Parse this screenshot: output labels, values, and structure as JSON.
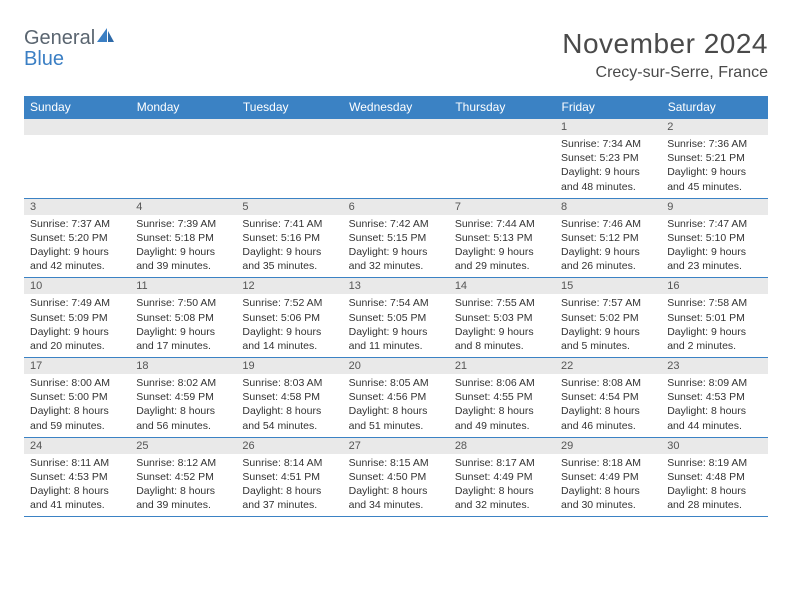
{
  "brand": {
    "word1": "General",
    "word2": "Blue"
  },
  "title": {
    "month": "November 2024",
    "location": "Crecy-sur-Serre, France"
  },
  "colors": {
    "header_bg": "#3b82c4",
    "header_text": "#ffffff",
    "daynum_bg": "#e9e9e9",
    "daynum_text": "#555555",
    "border": "#3b82c4",
    "logo_gray": "#5a6570",
    "logo_blue": "#3b7fc4",
    "page_bg": "#ffffff",
    "body_text": "#333333"
  },
  "day_headers": [
    "Sunday",
    "Monday",
    "Tuesday",
    "Wednesday",
    "Thursday",
    "Friday",
    "Saturday"
  ],
  "weeks": [
    [
      {
        "num": "",
        "sunrise": "",
        "sunset": "",
        "daylight1": "",
        "daylight2": ""
      },
      {
        "num": "",
        "sunrise": "",
        "sunset": "",
        "daylight1": "",
        "daylight2": ""
      },
      {
        "num": "",
        "sunrise": "",
        "sunset": "",
        "daylight1": "",
        "daylight2": ""
      },
      {
        "num": "",
        "sunrise": "",
        "sunset": "",
        "daylight1": "",
        "daylight2": ""
      },
      {
        "num": "",
        "sunrise": "",
        "sunset": "",
        "daylight1": "",
        "daylight2": ""
      },
      {
        "num": "1",
        "sunrise": "Sunrise: 7:34 AM",
        "sunset": "Sunset: 5:23 PM",
        "daylight1": "Daylight: 9 hours",
        "daylight2": "and 48 minutes."
      },
      {
        "num": "2",
        "sunrise": "Sunrise: 7:36 AM",
        "sunset": "Sunset: 5:21 PM",
        "daylight1": "Daylight: 9 hours",
        "daylight2": "and 45 minutes."
      }
    ],
    [
      {
        "num": "3",
        "sunrise": "Sunrise: 7:37 AM",
        "sunset": "Sunset: 5:20 PM",
        "daylight1": "Daylight: 9 hours",
        "daylight2": "and 42 minutes."
      },
      {
        "num": "4",
        "sunrise": "Sunrise: 7:39 AM",
        "sunset": "Sunset: 5:18 PM",
        "daylight1": "Daylight: 9 hours",
        "daylight2": "and 39 minutes."
      },
      {
        "num": "5",
        "sunrise": "Sunrise: 7:41 AM",
        "sunset": "Sunset: 5:16 PM",
        "daylight1": "Daylight: 9 hours",
        "daylight2": "and 35 minutes."
      },
      {
        "num": "6",
        "sunrise": "Sunrise: 7:42 AM",
        "sunset": "Sunset: 5:15 PM",
        "daylight1": "Daylight: 9 hours",
        "daylight2": "and 32 minutes."
      },
      {
        "num": "7",
        "sunrise": "Sunrise: 7:44 AM",
        "sunset": "Sunset: 5:13 PM",
        "daylight1": "Daylight: 9 hours",
        "daylight2": "and 29 minutes."
      },
      {
        "num": "8",
        "sunrise": "Sunrise: 7:46 AM",
        "sunset": "Sunset: 5:12 PM",
        "daylight1": "Daylight: 9 hours",
        "daylight2": "and 26 minutes."
      },
      {
        "num": "9",
        "sunrise": "Sunrise: 7:47 AM",
        "sunset": "Sunset: 5:10 PM",
        "daylight1": "Daylight: 9 hours",
        "daylight2": "and 23 minutes."
      }
    ],
    [
      {
        "num": "10",
        "sunrise": "Sunrise: 7:49 AM",
        "sunset": "Sunset: 5:09 PM",
        "daylight1": "Daylight: 9 hours",
        "daylight2": "and 20 minutes."
      },
      {
        "num": "11",
        "sunrise": "Sunrise: 7:50 AM",
        "sunset": "Sunset: 5:08 PM",
        "daylight1": "Daylight: 9 hours",
        "daylight2": "and 17 minutes."
      },
      {
        "num": "12",
        "sunrise": "Sunrise: 7:52 AM",
        "sunset": "Sunset: 5:06 PM",
        "daylight1": "Daylight: 9 hours",
        "daylight2": "and 14 minutes."
      },
      {
        "num": "13",
        "sunrise": "Sunrise: 7:54 AM",
        "sunset": "Sunset: 5:05 PM",
        "daylight1": "Daylight: 9 hours",
        "daylight2": "and 11 minutes."
      },
      {
        "num": "14",
        "sunrise": "Sunrise: 7:55 AM",
        "sunset": "Sunset: 5:03 PM",
        "daylight1": "Daylight: 9 hours",
        "daylight2": "and 8 minutes."
      },
      {
        "num": "15",
        "sunrise": "Sunrise: 7:57 AM",
        "sunset": "Sunset: 5:02 PM",
        "daylight1": "Daylight: 9 hours",
        "daylight2": "and 5 minutes."
      },
      {
        "num": "16",
        "sunrise": "Sunrise: 7:58 AM",
        "sunset": "Sunset: 5:01 PM",
        "daylight1": "Daylight: 9 hours",
        "daylight2": "and 2 minutes."
      }
    ],
    [
      {
        "num": "17",
        "sunrise": "Sunrise: 8:00 AM",
        "sunset": "Sunset: 5:00 PM",
        "daylight1": "Daylight: 8 hours",
        "daylight2": "and 59 minutes."
      },
      {
        "num": "18",
        "sunrise": "Sunrise: 8:02 AM",
        "sunset": "Sunset: 4:59 PM",
        "daylight1": "Daylight: 8 hours",
        "daylight2": "and 56 minutes."
      },
      {
        "num": "19",
        "sunrise": "Sunrise: 8:03 AM",
        "sunset": "Sunset: 4:58 PM",
        "daylight1": "Daylight: 8 hours",
        "daylight2": "and 54 minutes."
      },
      {
        "num": "20",
        "sunrise": "Sunrise: 8:05 AM",
        "sunset": "Sunset: 4:56 PM",
        "daylight1": "Daylight: 8 hours",
        "daylight2": "and 51 minutes."
      },
      {
        "num": "21",
        "sunrise": "Sunrise: 8:06 AM",
        "sunset": "Sunset: 4:55 PM",
        "daylight1": "Daylight: 8 hours",
        "daylight2": "and 49 minutes."
      },
      {
        "num": "22",
        "sunrise": "Sunrise: 8:08 AM",
        "sunset": "Sunset: 4:54 PM",
        "daylight1": "Daylight: 8 hours",
        "daylight2": "and 46 minutes."
      },
      {
        "num": "23",
        "sunrise": "Sunrise: 8:09 AM",
        "sunset": "Sunset: 4:53 PM",
        "daylight1": "Daylight: 8 hours",
        "daylight2": "and 44 minutes."
      }
    ],
    [
      {
        "num": "24",
        "sunrise": "Sunrise: 8:11 AM",
        "sunset": "Sunset: 4:53 PM",
        "daylight1": "Daylight: 8 hours",
        "daylight2": "and 41 minutes."
      },
      {
        "num": "25",
        "sunrise": "Sunrise: 8:12 AM",
        "sunset": "Sunset: 4:52 PM",
        "daylight1": "Daylight: 8 hours",
        "daylight2": "and 39 minutes."
      },
      {
        "num": "26",
        "sunrise": "Sunrise: 8:14 AM",
        "sunset": "Sunset: 4:51 PM",
        "daylight1": "Daylight: 8 hours",
        "daylight2": "and 37 minutes."
      },
      {
        "num": "27",
        "sunrise": "Sunrise: 8:15 AM",
        "sunset": "Sunset: 4:50 PM",
        "daylight1": "Daylight: 8 hours",
        "daylight2": "and 34 minutes."
      },
      {
        "num": "28",
        "sunrise": "Sunrise: 8:17 AM",
        "sunset": "Sunset: 4:49 PM",
        "daylight1": "Daylight: 8 hours",
        "daylight2": "and 32 minutes."
      },
      {
        "num": "29",
        "sunrise": "Sunrise: 8:18 AM",
        "sunset": "Sunset: 4:49 PM",
        "daylight1": "Daylight: 8 hours",
        "daylight2": "and 30 minutes."
      },
      {
        "num": "30",
        "sunrise": "Sunrise: 8:19 AM",
        "sunset": "Sunset: 4:48 PM",
        "daylight1": "Daylight: 8 hours",
        "daylight2": "and 28 minutes."
      }
    ]
  ]
}
